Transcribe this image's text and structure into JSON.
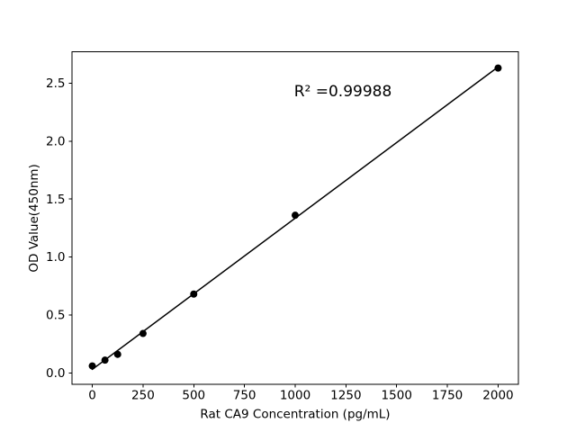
{
  "figure": {
    "background": "#ffffff"
  },
  "chart_data": {
    "type": "scatter",
    "title": "",
    "annotation": {
      "text": "R² =0.99988"
    },
    "xlabel": "Rat CA9 Concentration (pg/mL)",
    "ylabel": "OD Value(450nm)",
    "x": [
      0,
      62.5,
      125,
      250,
      500,
      1000,
      2000
    ],
    "y": [
      0.06,
      0.11,
      0.16,
      0.34,
      0.68,
      1.36,
      2.63
    ],
    "fit_line": {
      "x": [
        0,
        2000
      ],
      "y": [
        0.03,
        2.64
      ]
    },
    "xticks": [
      {
        "label": "0",
        "value": 0
      },
      {
        "label": "250",
        "value": 250
      },
      {
        "label": "500",
        "value": 500
      },
      {
        "label": "750",
        "value": 750
      },
      {
        "label": "1000",
        "value": 1000
      },
      {
        "label": "1250",
        "value": 1250
      },
      {
        "label": "1500",
        "value": 1500
      },
      {
        "label": "1750",
        "value": 1750
      },
      {
        "label": "2000",
        "value": 2000
      }
    ],
    "yticks": [
      {
        "label": "0.0",
        "value": 0.0
      },
      {
        "label": "0.5",
        "value": 0.5
      },
      {
        "label": "1.0",
        "value": 1.0
      },
      {
        "label": "1.5",
        "value": 1.5
      },
      {
        "label": "2.0",
        "value": 2.0
      },
      {
        "label": "2.5",
        "value": 2.5
      }
    ],
    "xlim": [
      -100,
      2100
    ],
    "ylim": [
      -0.1,
      2.77
    ],
    "grid": false,
    "legend": false,
    "colors": {
      "marker": "#000000",
      "line": "#000000",
      "axis": "#000000",
      "text": "#000000",
      "background": "#ffffff"
    }
  }
}
